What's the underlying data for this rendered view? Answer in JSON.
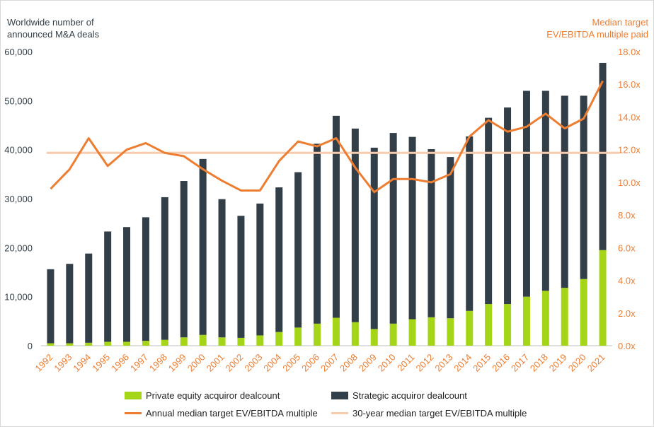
{
  "chart_data": {
    "type": "bar",
    "stacked": true,
    "categories": [
      "1992",
      "1993",
      "1994",
      "1995",
      "1996",
      "1997",
      "1998",
      "1999",
      "2000",
      "2001",
      "2002",
      "2003",
      "2004",
      "2005",
      "2006",
      "2007",
      "2008",
      "2009",
      "2010",
      "2011",
      "2012",
      "2013",
      "2014",
      "2015",
      "2016",
      "2017",
      "2018",
      "2019",
      "2020",
      "2021"
    ],
    "left_axis_title": "Worldwide number of announced M&A deals",
    "right_axis_title": "Median target EV/EBITDA multiple paid",
    "ylim_left": [
      0,
      60000
    ],
    "ylim_right": [
      0,
      18
    ],
    "left_ticks": [
      "0",
      "10,000",
      "20,000",
      "30,000",
      "40,000",
      "50,000",
      "60,000"
    ],
    "right_ticks": [
      "0.0x",
      "2.0x",
      "4.0x",
      "6.0x",
      "8.0x",
      "10.0x",
      "12.0x",
      "14.0x",
      "16.0x",
      "18.0x"
    ],
    "series": [
      {
        "name": "Private equity acquiror dealcount",
        "axis": "left",
        "color": "#A4D517",
        "values": [
          500,
          500,
          600,
          800,
          800,
          1000,
          1200,
          1700,
          2200,
          1700,
          1600,
          2100,
          2800,
          3700,
          4500,
          5700,
          4800,
          3400,
          4500,
          5400,
          5800,
          5600,
          7100,
          8500,
          8500,
          10000,
          11200,
          11800,
          13600,
          19500
        ]
      },
      {
        "name": "Strategic acquiror dealcount",
        "axis": "left",
        "color": "#333F48",
        "values": [
          15100,
          16200,
          18200,
          22500,
          23400,
          25200,
          29100,
          31900,
          35900,
          28200,
          24900,
          26900,
          29500,
          31700,
          36700,
          41200,
          39500,
          37000,
          38900,
          37200,
          34300,
          32900,
          35600,
          38000,
          40100,
          42000,
          40800,
          39200,
          37400,
          38200
        ]
      },
      {
        "name": "Annual median target EV/EBITDA multiple",
        "axis": "right",
        "type": "line",
        "color": "#ED7D31",
        "values": [
          9.6,
          10.8,
          12.7,
          11.0,
          12.0,
          12.4,
          11.8,
          11.6,
          10.8,
          10.1,
          9.5,
          9.5,
          11.3,
          12.5,
          12.2,
          12.7,
          10.9,
          9.4,
          10.2,
          10.2,
          10.0,
          10.5,
          12.8,
          13.8,
          13.1,
          13.4,
          14.2,
          13.3,
          13.9,
          16.2
        ]
      },
      {
        "name": "30-year median target EV/EBITDA multiple",
        "axis": "right",
        "type": "line",
        "color": "#F8CBAD",
        "values": [
          11.8,
          11.8,
          11.8,
          11.8,
          11.8,
          11.8,
          11.8,
          11.8,
          11.8,
          11.8,
          11.8,
          11.8,
          11.8,
          11.8,
          11.8,
          11.8,
          11.8,
          11.8,
          11.8,
          11.8,
          11.8,
          11.8,
          11.8,
          11.8,
          11.8,
          11.8,
          11.8,
          11.8,
          11.8,
          11.8
        ]
      }
    ],
    "left_axis_color": "#333F48",
    "right_axis_color": "#ED7D31",
    "category_label_color": "#ED7D31",
    "legend_position": "bottom",
    "grid": false
  }
}
